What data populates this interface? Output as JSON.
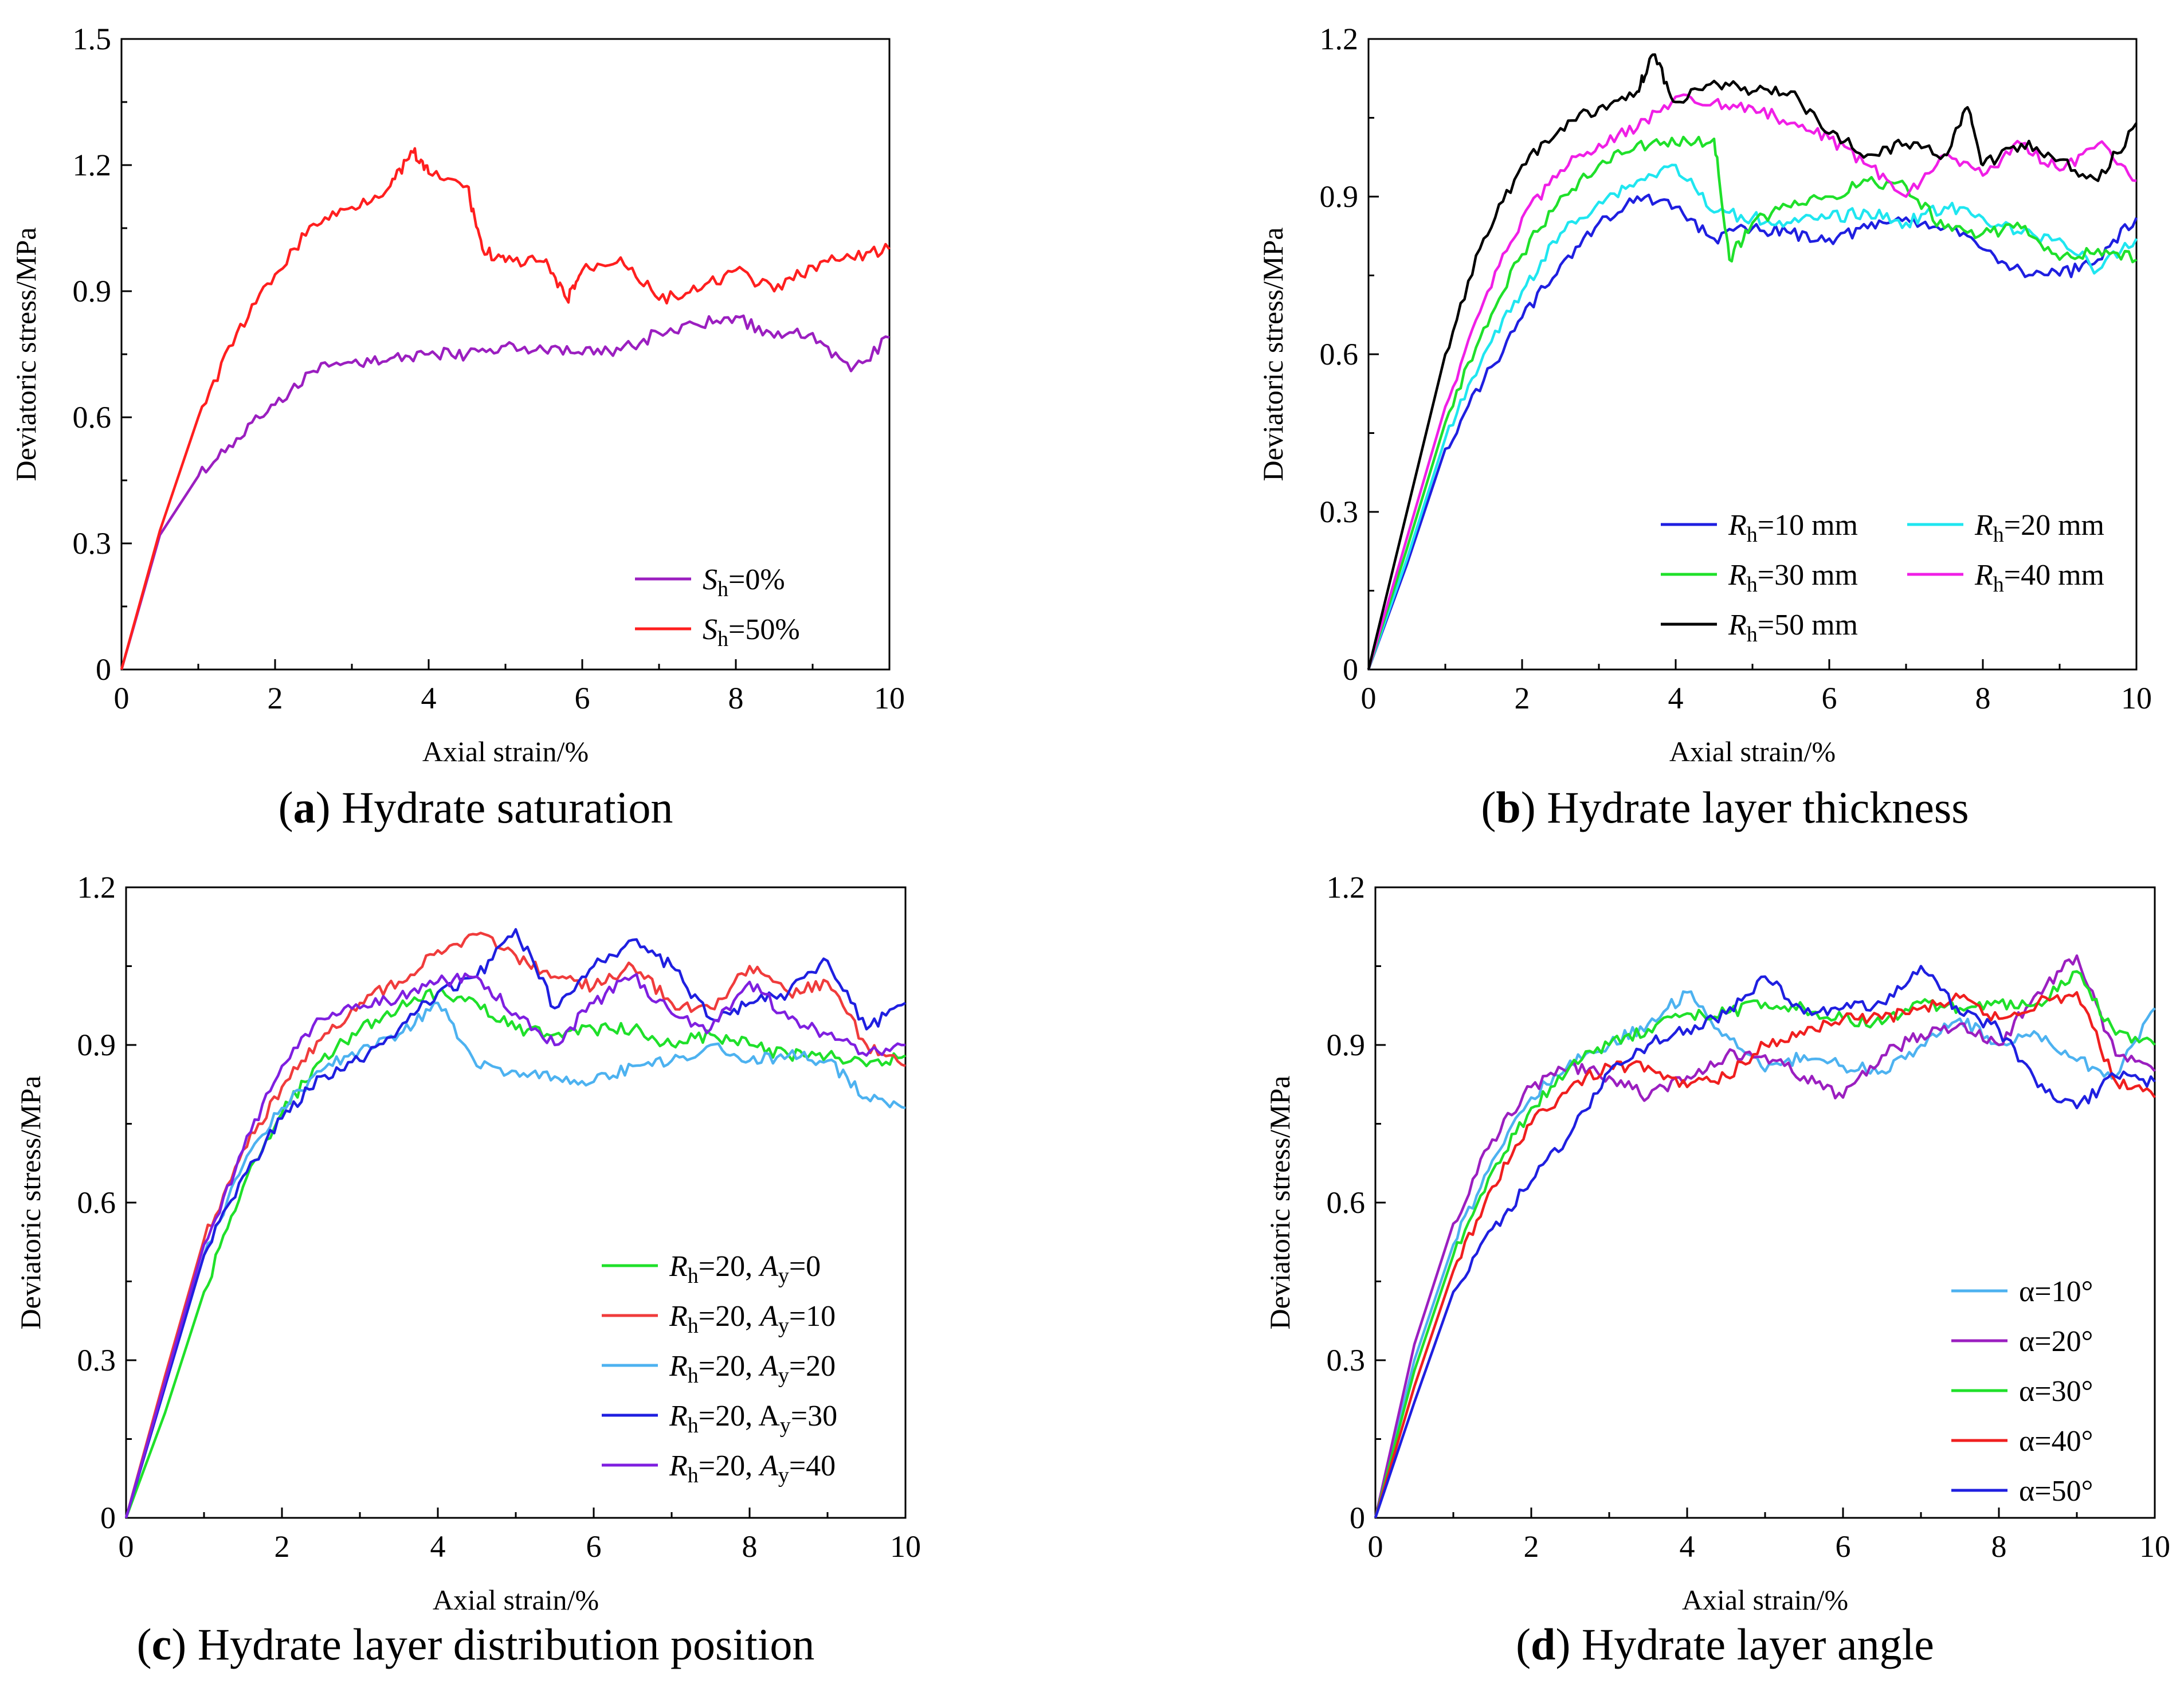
{
  "chart_data": [
    {
      "type": "line",
      "panel_label": "a",
      "title": "Hydrate saturation",
      "xlabel": "Axial strain/%",
      "ylabel": "Deviatoric stress/MPa",
      "xlim": [
        0,
        10
      ],
      "ylim": [
        0,
        1.5
      ],
      "xticks": [
        "0",
        "2",
        "4",
        "6",
        "8",
        "10"
      ],
      "yticks": [
        "0",
        "0.3",
        "0.6",
        "0.9",
        "1.2",
        "1.5"
      ],
      "legend_position": "bottom-right",
      "series": [
        {
          "name_main": "S",
          "name_sub": "h",
          "name_tail": "=0%",
          "color": "#9b1fc0",
          "x": [
            0,
            0.5,
            1,
            1.5,
            2,
            2.5,
            3,
            3.5,
            4,
            4.5,
            5,
            5.5,
            6,
            6.5,
            7,
            7.5,
            8,
            8.5,
            9,
            9.5,
            10
          ],
          "y": [
            0,
            0.32,
            0.46,
            0.55,
            0.63,
            0.71,
            0.73,
            0.74,
            0.75,
            0.75,
            0.77,
            0.76,
            0.75,
            0.76,
            0.8,
            0.82,
            0.84,
            0.79,
            0.8,
            0.71,
            0.79
          ]
        },
        {
          "name_main": "S",
          "name_sub": "h",
          "name_tail": "=50%",
          "color": "#ff1f1f",
          "x": [
            0,
            0.5,
            1,
            1.5,
            2,
            2.5,
            3,
            3.5,
            3.8,
            4,
            4.5,
            4.7,
            5,
            5.5,
            5.8,
            6,
            6.5,
            7,
            7.5,
            8,
            8.5,
            9,
            9.5,
            10
          ],
          "y": [
            0,
            0.33,
            0.6,
            0.8,
            0.94,
            1.06,
            1.1,
            1.15,
            1.23,
            1.18,
            1.15,
            1.0,
            0.97,
            0.97,
            0.88,
            0.95,
            0.98,
            0.88,
            0.9,
            0.95,
            0.9,
            0.96,
            0.98,
            1.0
          ]
        }
      ]
    },
    {
      "type": "line",
      "panel_label": "b",
      "title": "Hydrate layer thickness",
      "xlabel": "Axial strain/%",
      "ylabel": "Deviatoric stress/MPa",
      "xlim": [
        0,
        10
      ],
      "ylim": [
        0,
        1.2
      ],
      "xticks": [
        "0",
        "2",
        "4",
        "6",
        "8",
        "10"
      ],
      "yticks": [
        "0",
        "0.3",
        "0.6",
        "0.9",
        "1.2"
      ],
      "legend_position": "bottom-right",
      "series": [
        {
          "name_main": "R",
          "name_sub": "h",
          "name_tail": "=10 mm",
          "color": "#1f1fe0",
          "x": [
            0,
            0.5,
            1,
            1.5,
            2,
            2.5,
            3,
            3.5,
            4,
            4.5,
            5,
            5.5,
            6,
            6.5,
            7,
            7.5,
            8,
            8.5,
            9,
            9.5,
            10
          ],
          "y": [
            0,
            0.2,
            0.42,
            0.55,
            0.67,
            0.77,
            0.85,
            0.9,
            0.88,
            0.82,
            0.84,
            0.83,
            0.82,
            0.84,
            0.86,
            0.84,
            0.8,
            0.76,
            0.75,
            0.78,
            0.86
          ]
        },
        {
          "name_main": "R",
          "name_sub": "h",
          "name_tail": "=20 mm",
          "color": "#1fe6f0",
          "x": [
            0,
            0.5,
            1,
            1.5,
            2,
            2.5,
            3,
            3.5,
            4,
            4.5,
            5,
            5.5,
            6,
            6.5,
            7,
            7.5,
            8,
            8.5,
            9,
            9.5,
            10
          ],
          "y": [
            0,
            0.21,
            0.44,
            0.6,
            0.72,
            0.83,
            0.89,
            0.93,
            0.96,
            0.87,
            0.86,
            0.85,
            0.86,
            0.87,
            0.85,
            0.88,
            0.86,
            0.83,
            0.82,
            0.76,
            0.82
          ]
        },
        {
          "name_main": "R",
          "name_sub": "h",
          "name_tail": "=30 mm",
          "color": "#1fe02a",
          "x": [
            0,
            0.5,
            1,
            1.5,
            2,
            2.5,
            3,
            3.5,
            4,
            4.5,
            4.7,
            5,
            5.5,
            6,
            6.5,
            7,
            7.5,
            8,
            8.5,
            9,
            9.5,
            10
          ],
          "y": [
            0,
            0.23,
            0.47,
            0.65,
            0.79,
            0.9,
            0.96,
            1.0,
            1.0,
            1.01,
            0.78,
            0.85,
            0.88,
            0.9,
            0.93,
            0.92,
            0.84,
            0.83,
            0.84,
            0.78,
            0.8,
            0.78
          ]
        },
        {
          "name_main": "R",
          "name_sub": "h",
          "name_tail": "=40 mm",
          "color": "#f01fe6",
          "x": [
            0,
            0.5,
            1,
            1.5,
            2,
            2.5,
            3,
            3.5,
            4,
            4.5,
            5,
            5.5,
            6,
            6.5,
            7,
            7.5,
            8,
            8.5,
            9,
            9.5,
            10
          ],
          "y": [
            0,
            0.25,
            0.5,
            0.7,
            0.86,
            0.95,
            1.0,
            1.03,
            1.09,
            1.08,
            1.07,
            1.04,
            1.01,
            0.96,
            0.9,
            0.98,
            0.94,
            1.0,
            0.95,
            1.0,
            0.93
          ]
        },
        {
          "name_main": "R",
          "name_sub": "h",
          "name_tail": "=50 mm",
          "color": "#000000",
          "x": [
            0,
            0.5,
            1,
            1.5,
            2,
            2.5,
            3,
            3.5,
            3.7,
            4,
            4.5,
            5,
            5.5,
            6,
            6.5,
            7,
            7.5,
            7.8,
            8,
            8.5,
            9,
            9.5,
            10
          ],
          "y": [
            0,
            0.3,
            0.6,
            0.82,
            0.96,
            1.03,
            1.07,
            1.1,
            1.17,
            1.08,
            1.12,
            1.1,
            1.1,
            1.02,
            0.98,
            1.0,
            0.98,
            1.07,
            0.96,
            1.0,
            0.97,
            0.93,
            1.04
          ]
        }
      ]
    },
    {
      "type": "line",
      "panel_label": "c",
      "title": "Hydrate layer distribution position",
      "xlabel": "Axial strain/%",
      "ylabel": "Deviatoric stress/MPa",
      "xlim": [
        0,
        10
      ],
      "ylim": [
        0,
        1.2
      ],
      "xticks": [
        "0",
        "2",
        "4",
        "6",
        "8",
        "10"
      ],
      "yticks": [
        "0",
        "0.3",
        "0.6",
        "0.9",
        "1.2"
      ],
      "legend_position": "bottom-right",
      "series": [
        {
          "name_main": "R",
          "name_sub": "h",
          "name_tail": "=20, ",
          "name_main2": "A",
          "name_sub2": "y",
          "name_tail2": "=0",
          "color": "#1fe02a",
          "x": [
            0,
            0.5,
            1,
            1.5,
            2,
            2.5,
            3,
            3.5,
            4,
            4.5,
            5,
            5.5,
            6,
            6.5,
            7,
            7.5,
            8,
            8.5,
            9,
            9.5,
            10
          ],
          "y": [
            0,
            0.2,
            0.43,
            0.63,
            0.77,
            0.87,
            0.93,
            0.97,
            1.0,
            0.98,
            0.93,
            0.92,
            0.93,
            0.93,
            0.9,
            0.92,
            0.9,
            0.88,
            0.88,
            0.86,
            0.88
          ]
        },
        {
          "name_main": "R",
          "name_sub": "h",
          "name_tail": "=20, ",
          "name_main2": "A",
          "name_sub2": "y",
          "name_tail2": "=10",
          "color": "#f03c3c",
          "x": [
            0,
            0.5,
            1,
            1.5,
            2,
            2.5,
            3,
            3.5,
            4,
            4.5,
            5,
            5.5,
            6,
            6.5,
            7,
            7.5,
            8,
            8.5,
            9,
            9.5,
            10
          ],
          "y": [
            0,
            0.27,
            0.53,
            0.7,
            0.82,
            0.91,
            0.98,
            1.02,
            1.08,
            1.11,
            1.07,
            1.03,
            1.01,
            1.05,
            0.98,
            0.97,
            1.05,
            1.0,
            1.02,
            0.9,
            0.86
          ]
        },
        {
          "name_main": "R",
          "name_sub": "h",
          "name_tail": "=20, ",
          "name_main2": "A",
          "name_sub2": "y",
          "name_tail2": "=20",
          "color": "#4db2f0",
          "x": [
            0,
            0.5,
            1,
            1.5,
            2,
            2.5,
            3,
            3.5,
            4,
            4.5,
            5,
            5.5,
            6,
            6.5,
            7,
            7.5,
            8,
            8.5,
            9,
            9.5,
            10
          ],
          "y": [
            0,
            0.25,
            0.5,
            0.67,
            0.78,
            0.85,
            0.89,
            0.92,
            0.98,
            0.86,
            0.85,
            0.84,
            0.83,
            0.86,
            0.87,
            0.9,
            0.87,
            0.88,
            0.87,
            0.8,
            0.78
          ]
        },
        {
          "name_main": "R",
          "name_sub": "h",
          "name_tail": "=20, A",
          "name_main2": "",
          "name_sub2": "y",
          "name_tail2": "=30",
          "color": "#1f1fe0",
          "x": [
            0,
            0.5,
            1,
            1.5,
            2,
            2.5,
            3,
            3.5,
            4,
            4.5,
            5,
            5.5,
            6,
            6.5,
            7,
            7.5,
            8,
            8.5,
            9,
            9.5,
            10
          ],
          "y": [
            0,
            0.25,
            0.5,
            0.65,
            0.76,
            0.84,
            0.87,
            0.93,
            1.0,
            1.03,
            1.12,
            0.97,
            1.05,
            1.1,
            1.05,
            0.95,
            0.98,
            1.0,
            1.06,
            0.93,
            0.98
          ]
        },
        {
          "name_main": "R",
          "name_sub": "h",
          "name_tail": "=20, ",
          "name_main2": "A",
          "name_sub2": "y",
          "name_tail2": "=40",
          "color": "#7f1fe0",
          "x": [
            0,
            0.5,
            1,
            1.5,
            2,
            2.5,
            3,
            3.5,
            4,
            4.5,
            5,
            5.5,
            6,
            6.5,
            7,
            7.5,
            8,
            8.5,
            9,
            9.5,
            10
          ],
          "y": [
            0,
            0.26,
            0.52,
            0.7,
            0.86,
            0.95,
            0.97,
            0.99,
            1.02,
            1.03,
            0.96,
            0.9,
            0.98,
            1.03,
            0.96,
            0.93,
            1.02,
            0.95,
            0.92,
            0.88,
            0.9
          ]
        }
      ]
    },
    {
      "type": "line",
      "panel_label": "d",
      "title": "Hydrate layer angle",
      "xlabel": "Axial strain/%",
      "ylabel": "Deviatoric stress/MPa",
      "xlim": [
        0,
        10
      ],
      "ylim": [
        0,
        1.2
      ],
      "xticks": [
        "0",
        "2",
        "4",
        "6",
        "8",
        "10"
      ],
      "yticks": [
        "0",
        "0.3",
        "0.6",
        "0.9",
        "1.2"
      ],
      "legend_position": "bottom-right",
      "series": [
        {
          "name_main": "",
          "name_sub": "",
          "name_tail": "α=10°",
          "color": "#4db2f0",
          "x": [
            0,
            0.5,
            1,
            1.5,
            2,
            2.5,
            3,
            3.5,
            4,
            4.5,
            5,
            5.5,
            6,
            6.5,
            7,
            7.5,
            8,
            8.5,
            9,
            9.5,
            10
          ],
          "y": [
            0,
            0.3,
            0.52,
            0.68,
            0.8,
            0.87,
            0.9,
            0.94,
            1.0,
            0.92,
            0.85,
            0.88,
            0.86,
            0.85,
            0.9,
            0.95,
            0.9,
            0.92,
            0.87,
            0.84,
            0.97
          ]
        },
        {
          "name_main": "",
          "name_sub": "",
          "name_tail": "α=20°",
          "color": "#9b1fc0",
          "x": [
            0,
            0.5,
            1,
            1.5,
            2,
            2.5,
            3,
            3.5,
            4,
            4.5,
            5,
            5.5,
            6,
            6.5,
            7,
            7.5,
            8,
            8.5,
            9,
            9.5,
            10
          ],
          "y": [
            0,
            0.33,
            0.56,
            0.72,
            0.82,
            0.86,
            0.84,
            0.8,
            0.84,
            0.88,
            0.88,
            0.84,
            0.8,
            0.88,
            0.92,
            0.94,
            0.9,
            1.0,
            1.07,
            0.88,
            0.85
          ]
        },
        {
          "name_main": "",
          "name_sub": "",
          "name_tail": "α=30°",
          "color": "#1fe02a",
          "x": [
            0,
            0.5,
            1,
            1.5,
            2,
            2.5,
            3,
            3.5,
            4,
            4.5,
            5,
            5.5,
            6,
            6.5,
            7,
            7.5,
            8,
            8.5,
            9,
            9.5,
            10
          ],
          "y": [
            0,
            0.28,
            0.5,
            0.66,
            0.78,
            0.86,
            0.9,
            0.93,
            0.96,
            0.96,
            0.98,
            0.97,
            0.95,
            0.94,
            0.98,
            0.97,
            0.98,
            0.98,
            1.04,
            0.92,
            0.9
          ]
        },
        {
          "name_main": "",
          "name_sub": "",
          "name_tail": "α=40°",
          "color": "#f01f1f",
          "x": [
            0,
            0.5,
            1,
            1.5,
            2,
            2.5,
            3,
            3.5,
            4,
            4.5,
            5,
            5.5,
            6,
            6.5,
            7,
            7.5,
            8,
            8.5,
            9,
            9.5,
            10
          ],
          "y": [
            0,
            0.25,
            0.47,
            0.63,
            0.75,
            0.82,
            0.86,
            0.86,
            0.82,
            0.84,
            0.9,
            0.92,
            0.95,
            0.95,
            0.97,
            0.99,
            0.95,
            0.98,
            1.0,
            0.83,
            0.8
          ]
        },
        {
          "name_main": "",
          "name_sub": "",
          "name_tail": "α=50°",
          "color": "#1f1fe0",
          "x": [
            0,
            0.5,
            1,
            1.5,
            2,
            2.5,
            3,
            3.5,
            4,
            4.5,
            5,
            5.5,
            6,
            6.5,
            7,
            7.5,
            8,
            8.5,
            9,
            9.5,
            10
          ],
          "y": [
            0,
            0.22,
            0.43,
            0.55,
            0.64,
            0.73,
            0.85,
            0.9,
            0.93,
            0.96,
            1.03,
            0.96,
            0.97,
            0.98,
            1.05,
            0.96,
            0.93,
            0.82,
            0.78,
            0.84,
            0.83
          ]
        }
      ]
    }
  ]
}
